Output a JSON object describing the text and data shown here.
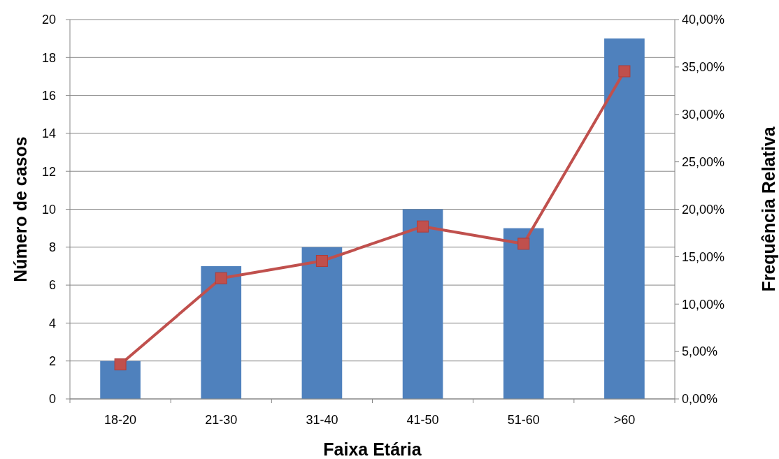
{
  "chart_data": {
    "type": "bar",
    "xlabel": "Faixa Etária",
    "ylabel": "Número de casos",
    "y2label": "Frequência Relativa",
    "categories": [
      "18-20",
      "21-30",
      "31-40",
      "41-50",
      "51-60",
      ">60"
    ],
    "series": [
      {
        "color": "#4f81bd",
        "values": [
          2,
          7,
          8,
          10,
          9,
          19
        ]
      },
      {
        "type": "line",
        "axis": "y2",
        "color": "#c0504d",
        "marker": "square",
        "values": [
          3.64,
          12.73,
          14.55,
          18.18,
          16.36,
          34.55
        ]
      }
    ],
    "ylim": [
      0,
      20
    ],
    "yticks": [
      0,
      2,
      4,
      6,
      8,
      10,
      12,
      14,
      16,
      18,
      20
    ],
    "y2lim": [
      0,
      40
    ],
    "y2ticks": [
      {
        "value": 0,
        "label": "0,00%"
      },
      {
        "value": 5,
        "label": "5,00%"
      },
      {
        "value": 10,
        "label": "10,00%"
      },
      {
        "value": 15,
        "label": "15,00%"
      },
      {
        "value": 20,
        "label": "20,00%"
      },
      {
        "value": 25,
        "label": "25,00%"
      },
      {
        "value": 30,
        "label": "30,00%"
      },
      {
        "value": 35,
        "label": "35,00%"
      },
      {
        "value": 40,
        "label": "40,00%"
      }
    ],
    "grid": "y"
  }
}
